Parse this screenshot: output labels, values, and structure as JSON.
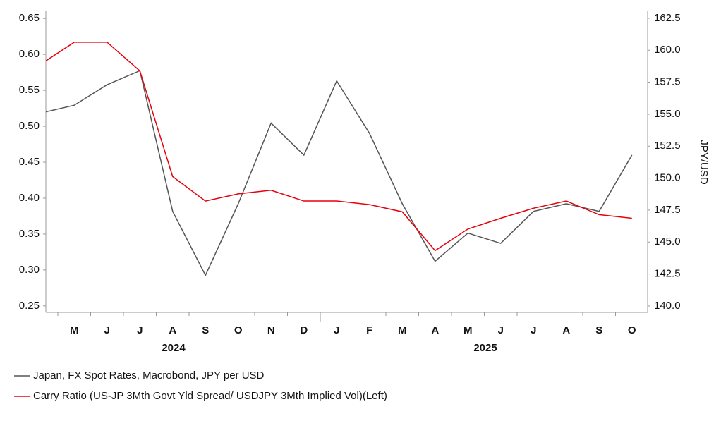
{
  "chart_data": {
    "type": "line",
    "categories": [
      null,
      "M",
      "J",
      "J",
      "A",
      "S",
      "O",
      "N",
      "D",
      "J",
      "F",
      "M",
      "A",
      "M",
      "J",
      "J",
      "A",
      "S",
      "O"
    ],
    "year_labels": [
      "2024",
      "2025"
    ],
    "series": [
      {
        "name": "Japan, FX Spot Rates, Macrobond, JPY per USD",
        "color": "#555555",
        "axis": "y2",
        "values": [
          155.1,
          155.7,
          157.3,
          158.4,
          147.4,
          142.4,
          148.0,
          154.3,
          151.8,
          157.6,
          153.5,
          148.0,
          143.5,
          145.7,
          144.9,
          147.4,
          148.0,
          147.4,
          151.8
        ]
      },
      {
        "name": "Carry Ratio (US-JP 3Mth Govt Yld Spread/ USDJPY 3Mth Implied Vol)(Left)",
        "color": "#e8000b",
        "values": [
          0.587,
          0.617,
          0.617,
          0.577,
          0.43,
          0.396,
          0.406,
          0.411,
          0.396,
          0.396,
          0.391,
          0.381,
          0.327,
          0.357,
          0.372,
          0.386,
          0.396,
          0.377,
          0.372
        ]
      }
    ],
    "ylim": [
      0.241,
      0.661
    ],
    "yticks": [
      0.25,
      {
        "value": 0.3,
        "label": "0.30"
      },
      0.35,
      {
        "value": 0.4,
        "label": "0.40"
      },
      0.45,
      {
        "value": 0.5,
        "label": "0.50"
      },
      0.55,
      {
        "value": 0.6,
        "label": "0.60"
      },
      0.65
    ],
    "y2lim": [
      139.5,
      163.1
    ],
    "y2label": "JPY/USD",
    "y2ticks": [
      {
        "value": 140,
        "label": "140.0"
      },
      142.5,
      {
        "value": 145,
        "label": "145.0"
      },
      147.5,
      {
        "value": 150,
        "label": "150.0"
      },
      152.5,
      {
        "value": 155,
        "label": "155.0"
      },
      157.5,
      {
        "value": 160,
        "label": "160.0"
      },
      162.5
    ],
    "grid": false
  }
}
